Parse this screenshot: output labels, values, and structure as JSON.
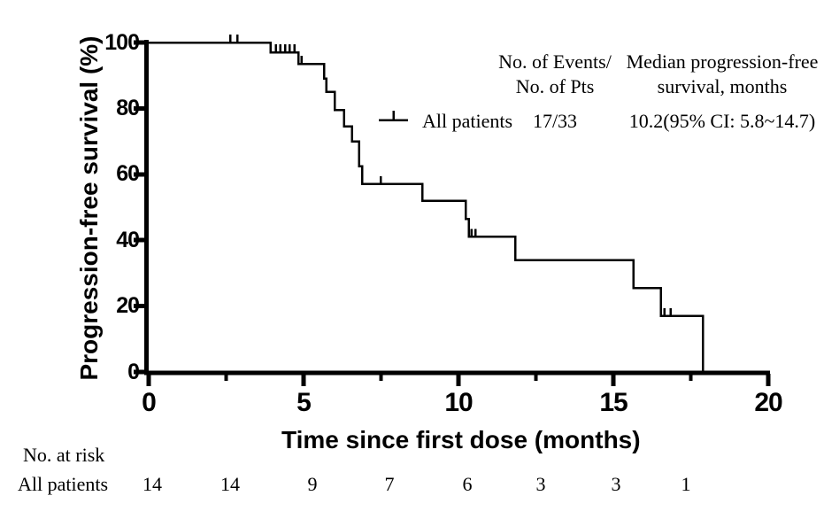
{
  "figure": {
    "background": "#ffffff",
    "ink_color": "#000000"
  },
  "chart_data": {
    "type": "line",
    "variant": "kaplan-meier-step",
    "title": "",
    "xlabel": "Time since first dose (months)",
    "ylabel": "Progression-free survival (%)",
    "xlim": [
      0,
      20
    ],
    "ylim": [
      0,
      100
    ],
    "grid": false,
    "xticks_major": [
      0,
      5,
      10,
      15,
      20
    ],
    "xtick_labels": [
      "0",
      "5",
      "10",
      "15",
      "20"
    ],
    "xticks_minor": [
      2.5,
      7.5,
      12.5,
      17.5
    ],
    "yticks": [
      100,
      80,
      60,
      40,
      20,
      0
    ],
    "ytick_labels": [
      "100",
      "80",
      "60",
      "40",
      "20",
      "0"
    ],
    "series": [
      {
        "name": "All patients",
        "start": [
          0,
          100
        ],
        "steps": [
          [
            3.94,
            97
          ],
          [
            4.83,
            93.5
          ],
          [
            5.66,
            89
          ],
          [
            5.74,
            85
          ],
          [
            6.01,
            79.5
          ],
          [
            6.31,
            74.5
          ],
          [
            6.57,
            70
          ],
          [
            6.79,
            62.5
          ],
          [
            6.89,
            57
          ],
          [
            8.83,
            52
          ],
          [
            10.23,
            46.5
          ],
          [
            10.33,
            41
          ],
          [
            11.83,
            34
          ],
          [
            15.65,
            25.5
          ],
          [
            16.53,
            17
          ],
          [
            17.89,
            0
          ]
        ],
        "censor_marks": [
          [
            2.63,
            100
          ],
          [
            2.86,
            100
          ],
          [
            4.1,
            97
          ],
          [
            4.25,
            97
          ],
          [
            4.4,
            97
          ],
          [
            4.55,
            97
          ],
          [
            4.7,
            97
          ],
          [
            4.93,
            93.5
          ],
          [
            7.49,
            57
          ],
          [
            10.42,
            41
          ],
          [
            10.55,
            41
          ],
          [
            16.65,
            17
          ],
          [
            16.85,
            17
          ]
        ],
        "median_months": 10.2
      }
    ],
    "legend_position": "upper-right-inside"
  },
  "legend_table": {
    "col1_header_line1": "No. of Events/",
    "col1_header_line2": "No. of Pts",
    "col2_header_line1": "Median progression-free",
    "col2_header_line2": "survival, months",
    "row": {
      "label": "All patients",
      "events_over_pts": "17/33",
      "median_pfs": "10.2(95% CI: 5.8~14.7)"
    }
  },
  "at_risk": {
    "title": "No. at risk",
    "row_label": "All patients",
    "values": [
      "14",
      "14",
      "9",
      "7",
      "6",
      "3",
      "3",
      "1"
    ]
  }
}
